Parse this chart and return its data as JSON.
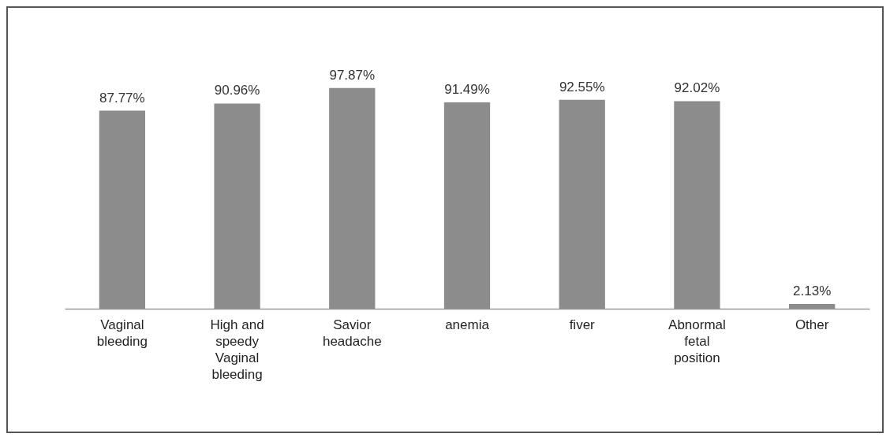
{
  "chart_data": {
    "type": "bar",
    "categories": [
      "Vaginal bleeding",
      "High and speedy Vaginal bleeding",
      "Savior headache",
      "anemia",
      "fiver",
      "Abnormal fetal position",
      "Other"
    ],
    "values": [
      87.77,
      90.96,
      97.87,
      91.49,
      92.55,
      92.02,
      2.13
    ],
    "value_labels": [
      "87.77%",
      "90.96%",
      "97.87%",
      "91.49%",
      "92.55%",
      "92.02%",
      "2.13%"
    ],
    "color": "#8c8c8c"
  }
}
